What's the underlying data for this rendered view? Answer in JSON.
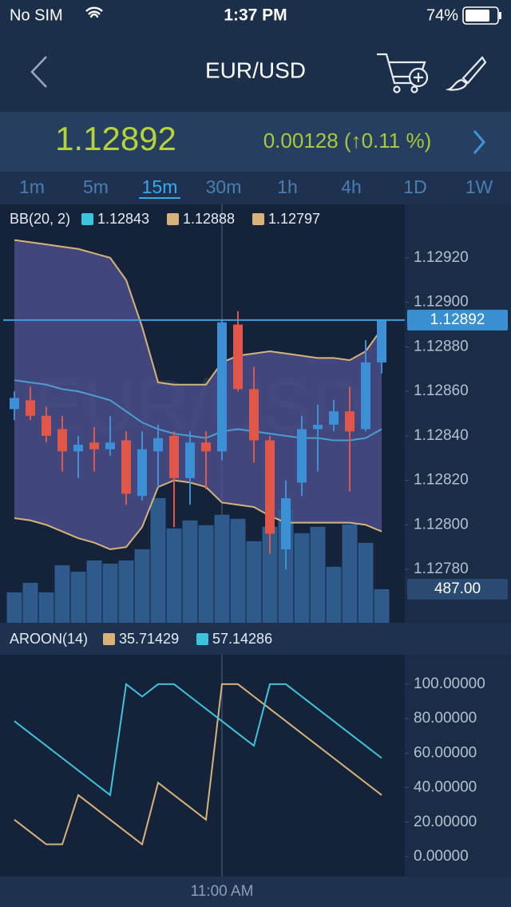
{
  "status_bar": {
    "carrier": "No SIM",
    "time": "1:37 PM",
    "battery": "74%"
  },
  "header": {
    "title": "EUR/USD"
  },
  "quote": {
    "change": "0.00128 (↑0.11 %)"
  },
  "timeframes": [
    "1m",
    "5m",
    "15m",
    "30m",
    "1h",
    "4h",
    "1D",
    "1W"
  ],
  "active_timeframe": 2,
  "chart_data": [
    {
      "type": "candlestick",
      "up_color": "#3d8fd6",
      "down_color": "#e0574a",
      "open": [
        1.12852,
        1.12856,
        1.12849,
        1.12843,
        1.12833,
        1.12837,
        1.12834,
        1.12838,
        1.12813,
        1.12833,
        1.1284,
        1.12821,
        1.12837,
        1.12833,
        1.1289,
        1.12861,
        1.12838,
        1.12789,
        1.12819,
        1.12843,
        1.12845,
        1.12851,
        1.12843,
        1.12873
      ],
      "high": [
        1.1286,
        1.12862,
        1.12853,
        1.12849,
        1.1284,
        1.12844,
        1.12849,
        1.12842,
        1.12842,
        1.12845,
        1.12842,
        1.12842,
        1.12842,
        1.12892,
        1.12896,
        1.12871,
        1.1284,
        1.1282,
        1.12849,
        1.12854,
        1.12856,
        1.12862,
        1.12883,
        1.12892
      ],
      "low": [
        1.12847,
        1.12847,
        1.12837,
        1.12824,
        1.12821,
        1.12824,
        1.12831,
        1.12809,
        1.12811,
        1.12817,
        1.12799,
        1.12809,
        1.12816,
        1.12829,
        1.1286,
        1.12828,
        1.12787,
        1.1278,
        1.12813,
        1.12824,
        1.12842,
        1.12815,
        1.12842,
        1.12868
      ],
      "close": [
        1.12857,
        1.12849,
        1.1284,
        1.12833,
        1.12836,
        1.12834,
        1.12837,
        1.12814,
        1.12834,
        1.12839,
        1.12821,
        1.12837,
        1.12833,
        1.12891,
        1.12861,
        1.12838,
        1.12796,
        1.12812,
        1.12843,
        1.12845,
        1.12851,
        1.12842,
        1.12873,
        1.12892
      ],
      "last_price": 1.12892,
      "ylim": [
        1.12756,
        1.12944
      ],
      "yticks": [
        {
          "value": 1.1292,
          "label": "1.12920"
        },
        {
          "value": 1.129,
          "label": "1.12900"
        },
        {
          "value": 1.1288,
          "label": "1.12880"
        },
        {
          "value": 1.1286,
          "label": "1.12860"
        },
        {
          "value": 1.1284,
          "label": "1.12840"
        },
        {
          "value": 1.1282,
          "label": "1.12820"
        },
        {
          "value": 1.128,
          "label": "1.12800"
        },
        {
          "value": 1.1278,
          "label": "1.12780"
        }
      ],
      "bollinger": {
        "title": "BB(20, 2)",
        "band_color": "#4c4f8d",
        "series": [
          {
            "color": "#3cc4dc",
            "line_color": "#4a9ed2",
            "values": [
              1.12865,
              1.12864,
              1.12863,
              1.12861,
              1.1286,
              1.12858,
              1.12856,
              1.12851,
              1.12846,
              1.12843,
              1.12841,
              1.1284,
              1.12839,
              1.12842,
              1.12843,
              1.12842,
              1.12841,
              1.1284,
              1.12839,
              1.12839,
              1.12838,
              1.12838,
              1.12839,
              1.12843
            ]
          },
          {
            "color": "#d8b27a",
            "line_color": "#d8b27a",
            "values": [
              1.12928,
              1.12927,
              1.12926,
              1.12925,
              1.12924,
              1.12922,
              1.1292,
              1.1291,
              1.12889,
              1.12864,
              1.12863,
              1.12863,
              1.12863,
              1.12873,
              1.12876,
              1.12877,
              1.12878,
              1.12877,
              1.12876,
              1.12875,
              1.12875,
              1.12874,
              1.12878,
              1.12888
            ]
          },
          {
            "color": "#d8b27a",
            "line_color": "#d8b27a",
            "values": [
              1.12803,
              1.12802,
              1.128,
              1.12797,
              1.12794,
              1.12792,
              1.12789,
              1.1279,
              1.12799,
              1.12817,
              1.1282,
              1.12819,
              1.12817,
              1.1281,
              1.12809,
              1.12808,
              1.12804,
              1.12801,
              1.12801,
              1.12801,
              1.12801,
              1.12801,
              1.128,
              1.12797
            ]
          }
        ]
      },
      "volume": {
        "color": "#2f5a8c",
        "ylim": [
          0,
          3000
        ],
        "values": [
          441,
          580,
          441,
          835,
          742,
          904,
          858,
          904,
          1067,
          1809,
          1369,
          1485,
          1415,
          1566,
          1508,
          1183,
          1392,
          1647,
          1299,
          1392,
          812,
          1427,
          1160,
          487
        ],
        "last_value_label": "487.00"
      }
    },
    {
      "type": "line",
      "title": "AROON(14)",
      "categories": [
        null,
        null,
        null,
        null,
        null,
        null,
        null,
        null,
        null,
        null,
        null,
        null,
        null,
        "11:00 AM",
        null,
        null,
        null,
        null,
        null,
        null,
        null,
        null,
        null,
        null
      ],
      "series": [
        {
          "color": "#d8b27a",
          "values": [
            21.42857,
            14.28571,
            7.14286,
            7.14286,
            35.71429,
            28.57143,
            21.42857,
            14.28571,
            7.14286,
            42.85714,
            35.71429,
            28.57143,
            21.42857,
            100,
            100,
            92.85714,
            85.71429,
            78.57143,
            71.42857,
            64.28571,
            57.14286,
            50,
            42.85714,
            35.71429
          ]
        },
        {
          "color": "#3cc4dc",
          "values": [
            78.57143,
            71.42857,
            64.28571,
            57.14286,
            50,
            42.85714,
            35.71429,
            100,
            92.85714,
            100,
            100,
            92.85714,
            85.71429,
            78.57143,
            71.42857,
            64.28571,
            100,
            100,
            92.85714,
            85.71429,
            78.57143,
            71.42857,
            64.28571,
            57.14286
          ]
        }
      ],
      "ylim": [
        -11.6,
        117.1
      ],
      "yticks": [
        {
          "value": 100,
          "label": "100.00000"
        },
        {
          "value": 80,
          "label": "80.00000"
        },
        {
          "value": 60,
          "label": "60.00000"
        },
        {
          "value": 40,
          "label": "40.00000"
        },
        {
          "value": 20,
          "label": "20.00000"
        },
        {
          "value": 0,
          "label": "0.00000"
        }
      ]
    }
  ]
}
